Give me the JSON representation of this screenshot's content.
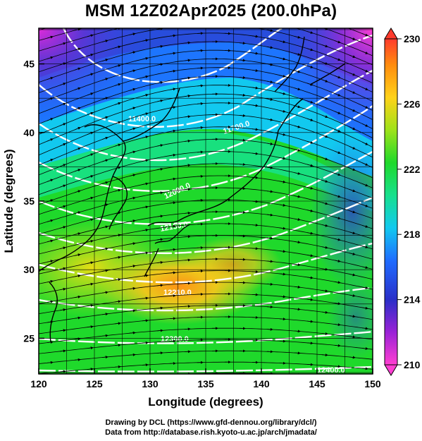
{
  "title": "MSM 12Z02Apr2025 (200.0hPa)",
  "chart_data": {
    "type": "heatmap",
    "map_region": "Japan and surrounding seas",
    "field_variable_colored": "temperature (K)",
    "xlabel": "Longitude (degrees)",
    "ylabel": "Latitude  (degrees)",
    "xlim": [
      120,
      150
    ],
    "ylim": [
      22.4,
      47.6
    ],
    "x_ticks": [
      120,
      125,
      130,
      135,
      140,
      145,
      150
    ],
    "y_ticks": [
      25,
      30,
      35,
      40,
      45
    ],
    "grid": true,
    "colorbar": {
      "placement": "right",
      "min": 210,
      "max": 230,
      "ticks": [
        210,
        214,
        218,
        222,
        226,
        230
      ]
    },
    "contours": {
      "color": "#ffffff",
      "variable": "geopotential height (m)",
      "labeled_levels": [
        "11400.0",
        "11700.0",
        "12000.0",
        "12150.0",
        "12210.0",
        "12300.0",
        "12400.0"
      ]
    },
    "streamlines": {
      "color": "#000000",
      "direction": "west-to-east"
    }
  },
  "credits": {
    "line1": "Drawing by DCL (https://www.gfd-dennou.org/library/dcl/)",
    "line2": "Data from http://database.rish.kyoto-u.ac.jp/arch/jmadata/"
  }
}
